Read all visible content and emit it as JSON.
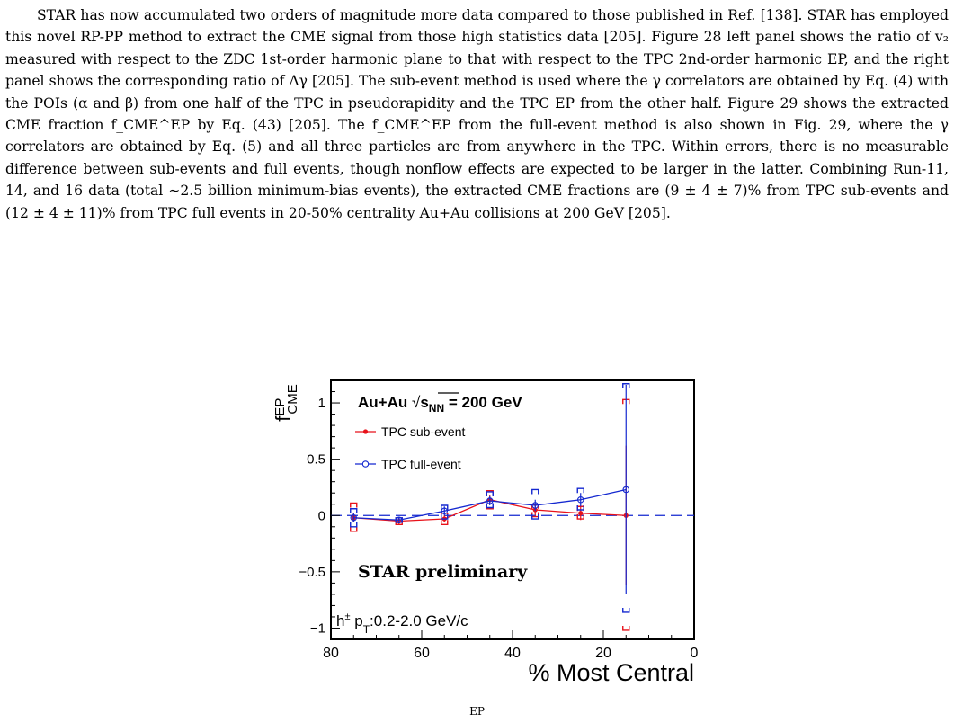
{
  "paragraph": "STAR has now accumulated two orders of magnitude more data compared to those published in Ref. [138]. STAR has employed this novel RP-PP method to extract the CME signal from those high statistics data [205]. Figure 28 left panel shows the ratio of v₂ measured with respect to the ZDC 1st-order harmonic plane to that with respect to the TPC 2nd-order harmonic EP, and the right panel shows the corresponding ratio of Δγ [205]. The sub-event method is used where the γ correlators are obtained by Eq. (4) with the POIs (α and β) from one half of the TPC in pseudorapidity and the TPC EP from the other half. Figure 29 shows the extracted CME fraction f_CME^EP by Eq. (43) [205]. The f_CME^EP from the full-event method is also shown in Fig. 29, where the γ correlators are obtained by Eq. (5) and all three particles are from anywhere in the TPC. Within errors, there is no measurable difference between sub-events and full events, though nonflow effects are expected to be larger in the latter. Combining Run-11, 14, and 16 data (total ∼2.5 billion minimum-bias events), the extracted CME fractions are (9 ± 4 ± 7)% from TPC sub-events and (12 ± 4 ± 11)% from TPC full events in 20-50% centrality Au+Au collisions at 200 GeV [205].",
  "caption_fragment": "EP",
  "chart_data": {
    "type": "scatter",
    "title": "Au+Au √sNN = 200 GeV",
    "title_prefix": "Au+Au",
    "title_suffix": " = 200 GeV",
    "ylabel": "f^EP_CME",
    "xlabel": "% Most Central",
    "xlim": [
      80,
      0
    ],
    "ylim": [
      -1.1,
      1.2
    ],
    "x_ticks": [
      80,
      60,
      40,
      20,
      0
    ],
    "y_ticks": [
      1,
      0.5,
      0,
      -0.5,
      -1
    ],
    "y_tick_labels": [
      "1",
      "0.5",
      "0",
      "−0.5",
      "−1"
    ],
    "reference_line": 0,
    "annotations": [
      "STAR preliminary",
      "h± pT:0.2-2.0 GeV/c"
    ],
    "legend_position": "top-left",
    "series": [
      {
        "name": "TPC sub-event",
        "color": "#e8121a",
        "marker": "filled-circle",
        "x": [
          75,
          65,
          55,
          45,
          35,
          25,
          15
        ],
        "y": [
          -0.02,
          -0.05,
          -0.03,
          0.14,
          0.05,
          0.02,
          0.0
        ],
        "err": [
          0.04,
          0.03,
          0.03,
          0.04,
          0.05,
          0.06,
          0.62
        ],
        "sys_low": [
          -0.14,
          -0.08,
          -0.08,
          0.06,
          -0.01,
          -0.03,
          -1.02
        ],
        "sys_high": [
          0.11,
          -0.02,
          0.02,
          0.22,
          0.1,
          0.08,
          1.03
        ]
      },
      {
        "name": "TPC full-event",
        "color": "#1428d0",
        "marker": "open-circle",
        "x": [
          75,
          65,
          55,
          45,
          35,
          25,
          15
        ],
        "y": [
          -0.02,
          -0.04,
          0.04,
          0.13,
          0.09,
          0.14,
          0.23
        ],
        "err": [
          0.04,
          0.03,
          0.04,
          0.04,
          0.05,
          0.06,
          0.93
        ],
        "sys_low": [
          -0.1,
          -0.06,
          -0.03,
          0.07,
          -0.03,
          0.05,
          -0.86
        ],
        "sys_high": [
          0.06,
          -0.02,
          0.09,
          0.21,
          0.23,
          0.24,
          1.17
        ]
      }
    ]
  }
}
